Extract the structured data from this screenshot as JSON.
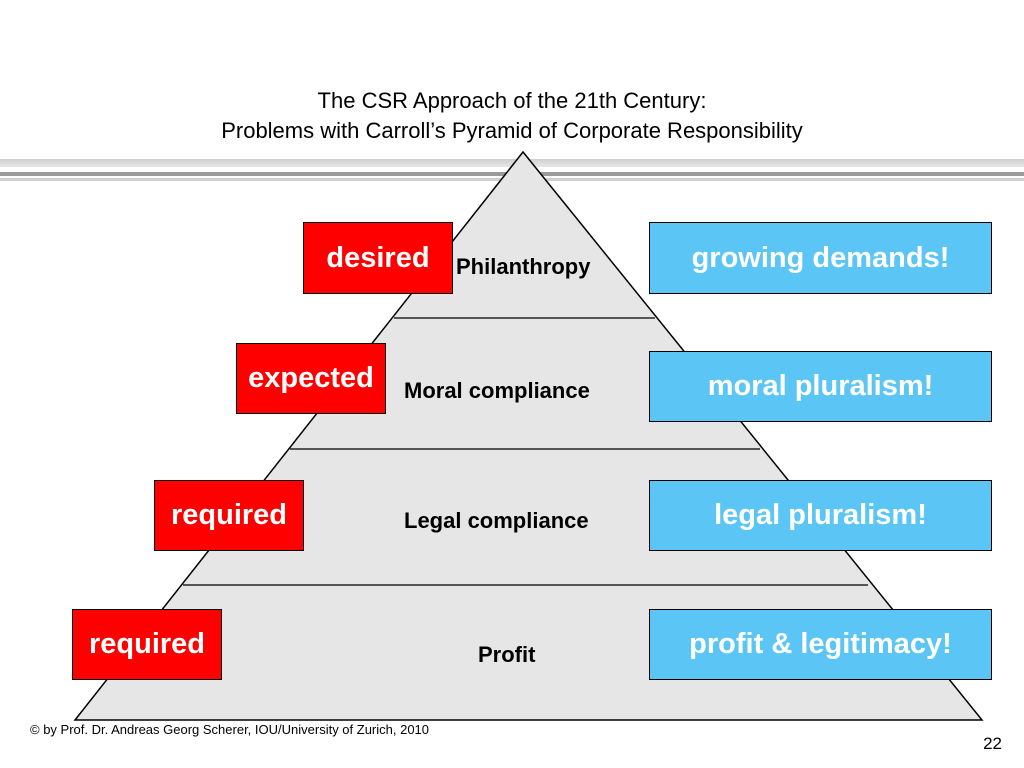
{
  "title": {
    "line1": "The CSR Approach of the 21th Century:",
    "line2": "Problems with Carroll’s Pyramid of Corporate Responsibility"
  },
  "pyramid": {
    "fill_color": "#e6e6e6",
    "levels": [
      {
        "name": "Philanthropy",
        "tag": "desired",
        "issue": "growing demands!"
      },
      {
        "name": "Moral compliance",
        "tag": "expected",
        "issue": "moral pluralism!"
      },
      {
        "name": "Legal compliance",
        "tag": "required",
        "issue": "legal pluralism!"
      },
      {
        "name": "Profit",
        "tag": "required",
        "issue": "profit & legitimacy!"
      }
    ]
  },
  "colors": {
    "tag_box": "#ff0000",
    "issue_box": "#5bc6f5"
  },
  "footer": {
    "copyright": "© by Prof. Dr. Andreas Georg Scherer, IOU/University of Zurich, 2010",
    "page_number": "22"
  }
}
